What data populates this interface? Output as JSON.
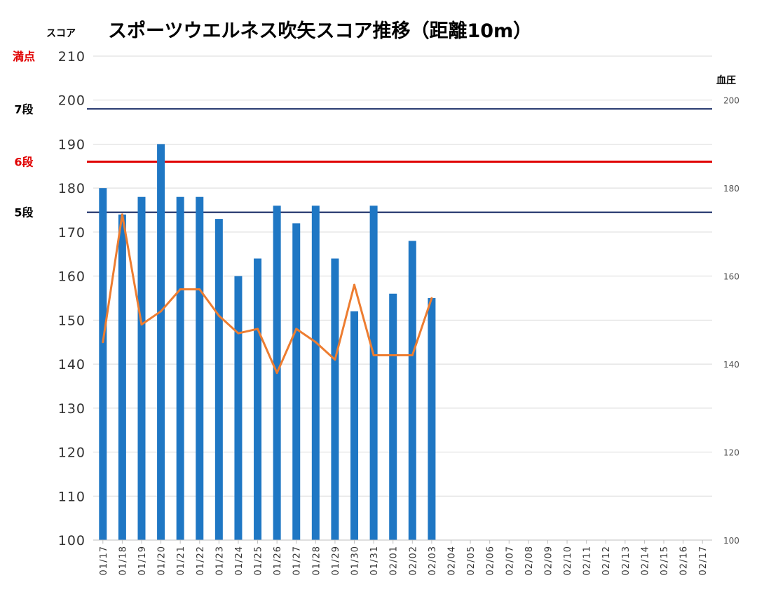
{
  "chart_data": {
    "type": "bar",
    "title": "スポーツウエルネス吹矢スコア推移（距離10m）",
    "ylabel": "スコア",
    "y2label": "血圧",
    "ylim": [
      100,
      210
    ],
    "y2lim": [
      100,
      210
    ],
    "yticks": [
      100,
      110,
      120,
      130,
      140,
      150,
      160,
      170,
      180,
      190,
      200,
      210
    ],
    "y2ticks": [
      100,
      120,
      140,
      160,
      180,
      200
    ],
    "grid": true,
    "categories": [
      "01/17",
      "01/18",
      "01/19",
      "01/20",
      "01/21",
      "01/22",
      "01/23",
      "01/24",
      "01/25",
      "01/26",
      "01/27",
      "01/28",
      "01/29",
      "01/30",
      "01/31",
      "02/01",
      "02/02",
      "02/03",
      "02/04",
      "02/05",
      "02/06",
      "02/07",
      "02/08",
      "02/09",
      "02/10",
      "02/11",
      "02/12",
      "02/13",
      "02/14",
      "02/15",
      "02/16",
      "02/17"
    ],
    "series": [
      {
        "type": "bar",
        "color": "#1F77C4",
        "values": [
          180,
          174,
          178,
          190,
          178,
          178,
          173,
          160,
          164,
          176,
          172,
          176,
          164,
          152,
          176,
          156,
          168,
          155,
          null,
          null,
          null,
          null,
          null,
          null,
          null,
          null,
          null,
          null,
          null,
          null,
          null,
          null
        ]
      },
      {
        "type": "line",
        "color": "#ED7D31",
        "axis": "right",
        "values": [
          145,
          174,
          149,
          152,
          157,
          157,
          151,
          147,
          148,
          138,
          148,
          145,
          141,
          158,
          142,
          142,
          142,
          155,
          null,
          null,
          null,
          null,
          null,
          null,
          null,
          null,
          null,
          null,
          null,
          null,
          null,
          null
        ]
      }
    ],
    "reference_lines": [
      {
        "label": "満点",
        "value": 210,
        "color": "#E00000",
        "label_color": "#E00000",
        "line": false
      },
      {
        "label": "7段",
        "value": 198,
        "color": "#0A1F5C",
        "label_color": "#000000",
        "line": true
      },
      {
        "label": "6段",
        "value": 186,
        "color": "#E00000",
        "label_color": "#E00000",
        "line": true
      },
      {
        "label": "5段",
        "value": 174.5,
        "color": "#0A1F5C",
        "label_color": "#000000",
        "line": true
      }
    ]
  }
}
